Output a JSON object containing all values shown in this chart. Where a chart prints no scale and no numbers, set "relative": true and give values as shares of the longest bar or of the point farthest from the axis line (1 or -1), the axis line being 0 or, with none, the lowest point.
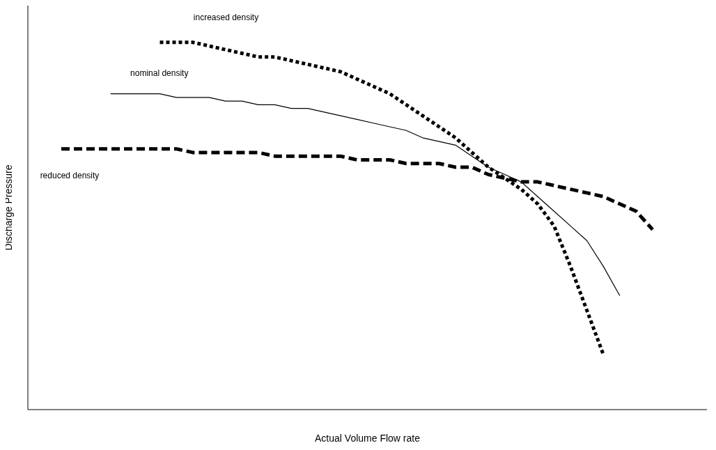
{
  "chart_data": {
    "type": "line",
    "relative": true,
    "xlabel": "Actual Volume Flow rate",
    "ylabel": "Discharge Pressure",
    "grid": false,
    "legend": false,
    "marker": "none",
    "categories": [
      null,
      null,
      null,
      null,
      null,
      null,
      null,
      null,
      null,
      null,
      null,
      null,
      null,
      null,
      null,
      null,
      null,
      null,
      null,
      null,
      null,
      null,
      null,
      null,
      null,
      null,
      null,
      null,
      null,
      null,
      null,
      null,
      null,
      null,
      null,
      null,
      null
    ],
    "series": [
      {
        "name": "increased density",
        "color": "#000000",
        "line_style": "dotted",
        "values": [
          null,
          null,
          null,
          null,
          null,
          null,
          1.0,
          1.0,
          1.0,
          0.99,
          0.98,
          0.97,
          0.96,
          0.96,
          0.95,
          0.94,
          0.93,
          0.92,
          0.9,
          0.88,
          0.86,
          0.83,
          0.8,
          0.77,
          0.74,
          0.7,
          0.66,
          0.63,
          0.6,
          0.56,
          0.5,
          0.39,
          0.27,
          0.15,
          null,
          null,
          null
        ]
      },
      {
        "name": "nominal density",
        "color": "#000000",
        "line_style": "solid",
        "values": [
          null,
          null,
          null,
          0.86,
          0.86,
          0.86,
          0.86,
          0.85,
          0.85,
          0.85,
          0.84,
          0.84,
          0.83,
          0.83,
          0.82,
          0.82,
          0.81,
          0.8,
          0.79,
          0.78,
          0.77,
          0.76,
          0.74,
          0.73,
          0.72,
          0.69,
          0.66,
          0.64,
          0.62,
          0.58,
          0.54,
          0.5,
          0.46,
          0.39,
          0.31,
          null,
          null
        ]
      },
      {
        "name": "reduced density",
        "color": "#000000",
        "line_style": "dashed",
        "values": [
          0.71,
          0.71,
          0.71,
          0.71,
          0.71,
          0.71,
          0.71,
          0.71,
          0.7,
          0.7,
          0.7,
          0.7,
          0.7,
          0.69,
          0.69,
          0.69,
          0.69,
          0.69,
          0.68,
          0.68,
          0.68,
          0.67,
          0.67,
          0.67,
          0.66,
          0.66,
          0.64,
          0.63,
          0.62,
          0.62,
          0.61,
          0.6,
          0.59,
          0.58,
          0.56,
          0.54,
          0.49
        ]
      }
    ]
  }
}
